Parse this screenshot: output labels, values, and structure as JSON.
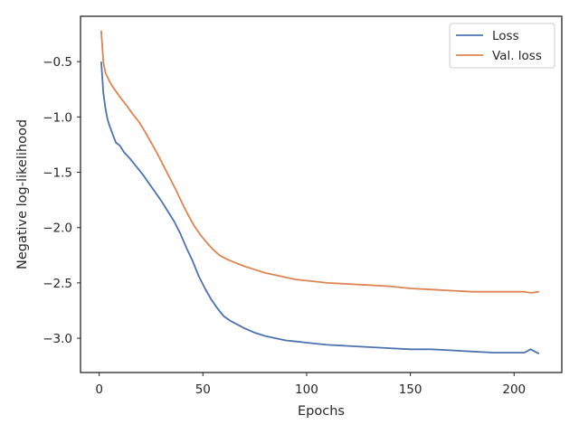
{
  "chart_data": {
    "type": "line",
    "title": "",
    "xlabel": "Epochs",
    "ylabel": "Negative log-likelihood",
    "xlim": [
      -9,
      223
    ],
    "ylim": [
      -3.31,
      -0.09
    ],
    "xticks": [
      0,
      50,
      100,
      150,
      200
    ],
    "yticks": [
      -3.0,
      -2.5,
      -2.0,
      -1.5,
      -1.0,
      -0.5
    ],
    "ytick_labels": [
      "−3.0",
      "−2.5",
      "−2.0",
      "−1.5",
      "−1.0",
      "−0.5"
    ],
    "grid": false,
    "legend": "top-right",
    "series": [
      {
        "name": "Loss",
        "color": "#4c72b0",
        "points": [
          [
            1,
            -0.5
          ],
          [
            2,
            -0.78
          ],
          [
            3,
            -0.92
          ],
          [
            4,
            -1.02
          ],
          [
            5,
            -1.08
          ],
          [
            6,
            -1.13
          ],
          [
            7,
            -1.18
          ],
          [
            8,
            -1.23
          ],
          [
            10,
            -1.26
          ],
          [
            12,
            -1.32
          ],
          [
            15,
            -1.38
          ],
          [
            18,
            -1.45
          ],
          [
            21,
            -1.52
          ],
          [
            24,
            -1.6
          ],
          [
            27,
            -1.68
          ],
          [
            30,
            -1.76
          ],
          [
            33,
            -1.85
          ],
          [
            36,
            -1.94
          ],
          [
            39,
            -2.05
          ],
          [
            42,
            -2.18
          ],
          [
            45,
            -2.3
          ],
          [
            48,
            -2.44
          ],
          [
            51,
            -2.55
          ],
          [
            54,
            -2.65
          ],
          [
            57,
            -2.73
          ],
          [
            60,
            -2.8
          ],
          [
            63,
            -2.84
          ],
          [
            66,
            -2.87
          ],
          [
            70,
            -2.91
          ],
          [
            75,
            -2.95
          ],
          [
            80,
            -2.98
          ],
          [
            85,
            -3.0
          ],
          [
            90,
            -3.02
          ],
          [
            95,
            -3.03
          ],
          [
            100,
            -3.04
          ],
          [
            110,
            -3.06
          ],
          [
            120,
            -3.07
          ],
          [
            130,
            -3.08
          ],
          [
            140,
            -3.09
          ],
          [
            150,
            -3.1
          ],
          [
            160,
            -3.1
          ],
          [
            170,
            -3.11
          ],
          [
            180,
            -3.12
          ],
          [
            190,
            -3.13
          ],
          [
            200,
            -3.13
          ],
          [
            205,
            -3.13
          ],
          [
            208,
            -3.1
          ],
          [
            210,
            -3.12
          ],
          [
            212,
            -3.14
          ]
        ]
      },
      {
        "name": "Val. loss",
        "color": "#dd8452",
        "points": [
          [
            1,
            -0.22
          ],
          [
            2,
            -0.5
          ],
          [
            3,
            -0.6
          ],
          [
            5,
            -0.68
          ],
          [
            7,
            -0.74
          ],
          [
            10,
            -0.82
          ],
          [
            13,
            -0.89
          ],
          [
            16,
            -0.97
          ],
          [
            19,
            -1.04
          ],
          [
            22,
            -1.13
          ],
          [
            25,
            -1.23
          ],
          [
            28,
            -1.33
          ],
          [
            31,
            -1.44
          ],
          [
            34,
            -1.55
          ],
          [
            37,
            -1.66
          ],
          [
            40,
            -1.78
          ],
          [
            43,
            -1.89
          ],
          [
            46,
            -1.99
          ],
          [
            49,
            -2.07
          ],
          [
            52,
            -2.14
          ],
          [
            55,
            -2.2
          ],
          [
            58,
            -2.25
          ],
          [
            62,
            -2.29
          ],
          [
            66,
            -2.32
          ],
          [
            70,
            -2.35
          ],
          [
            75,
            -2.38
          ],
          [
            80,
            -2.41
          ],
          [
            85,
            -2.43
          ],
          [
            90,
            -2.45
          ],
          [
            95,
            -2.47
          ],
          [
            100,
            -2.48
          ],
          [
            110,
            -2.5
          ],
          [
            120,
            -2.51
          ],
          [
            130,
            -2.52
          ],
          [
            140,
            -2.53
          ],
          [
            150,
            -2.55
          ],
          [
            160,
            -2.56
          ],
          [
            170,
            -2.57
          ],
          [
            180,
            -2.58
          ],
          [
            190,
            -2.58
          ],
          [
            200,
            -2.58
          ],
          [
            205,
            -2.58
          ],
          [
            208,
            -2.59
          ],
          [
            212,
            -2.58
          ]
        ]
      }
    ]
  }
}
